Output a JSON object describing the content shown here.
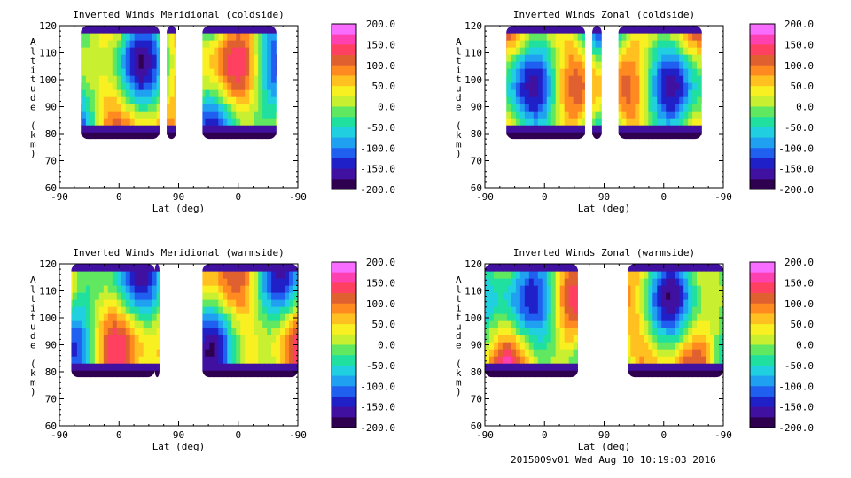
{
  "footer": "2015009v01 Wed Aug 10 10:19:03 2016",
  "colorbar": {
    "ticks": [
      "200.0",
      "150.0",
      "100.0",
      "50.0",
      "0.0",
      "-50.0",
      "-100.0",
      "-150.0",
      "-200.0"
    ],
    "colors": [
      "#f86cff",
      "#ff40b0",
      "#ff4060",
      "#e06030",
      "#ff8a20",
      "#ffc020",
      "#f8f020",
      "#c8f030",
      "#60e860",
      "#20e0a0",
      "#20d0e0",
      "#20a0f0",
      "#2060f0",
      "#2020c8",
      "#4010a0",
      "#300050"
    ]
  },
  "chart_data": [
    {
      "type": "heatmap",
      "title": "Inverted Winds Meridional (coldside)",
      "xlabel": "Lat (deg)",
      "ylabel": "Altitude (km)",
      "x_ticks": [
        "-90",
        "0",
        "90",
        "0",
        "-90"
      ],
      "y_ticks": [
        "120",
        "110",
        "100",
        "90",
        "80",
        "70",
        "60"
      ],
      "ylim": [
        60,
        120
      ],
      "value_range": [
        -200,
        200
      ]
    },
    {
      "type": "heatmap",
      "title": "Inverted Winds Zonal (coldside)",
      "xlabel": "Lat (deg)",
      "ylabel": "Altitude (km)",
      "x_ticks": [
        "-90",
        "0",
        "90",
        "0",
        "-90"
      ],
      "y_ticks": [
        "120",
        "110",
        "100",
        "90",
        "80",
        "70",
        "60"
      ],
      "ylim": [
        60,
        120
      ],
      "value_range": [
        -200,
        200
      ]
    },
    {
      "type": "heatmap",
      "title": "Inverted Winds Meridional (warmside)",
      "xlabel": "Lat (deg)",
      "ylabel": "Altitude (km)",
      "x_ticks": [
        "-90",
        "0",
        "90",
        "0",
        "-90"
      ],
      "y_ticks": [
        "120",
        "110",
        "100",
        "90",
        "80",
        "70",
        "60"
      ],
      "ylim": [
        60,
        120
      ],
      "value_range": [
        -200,
        200
      ]
    },
    {
      "type": "heatmap",
      "title": "Inverted Winds Zonal (warmside)",
      "xlabel": "Lat (deg)",
      "ylabel": "Altitude (km)",
      "x_ticks": [
        "-90",
        "0",
        "90",
        "0",
        "-90"
      ],
      "y_ticks": [
        "120",
        "110",
        "100",
        "90",
        "80",
        "70",
        "60"
      ],
      "ylim": [
        60,
        120
      ],
      "value_range": [
        -200,
        200
      ]
    }
  ]
}
